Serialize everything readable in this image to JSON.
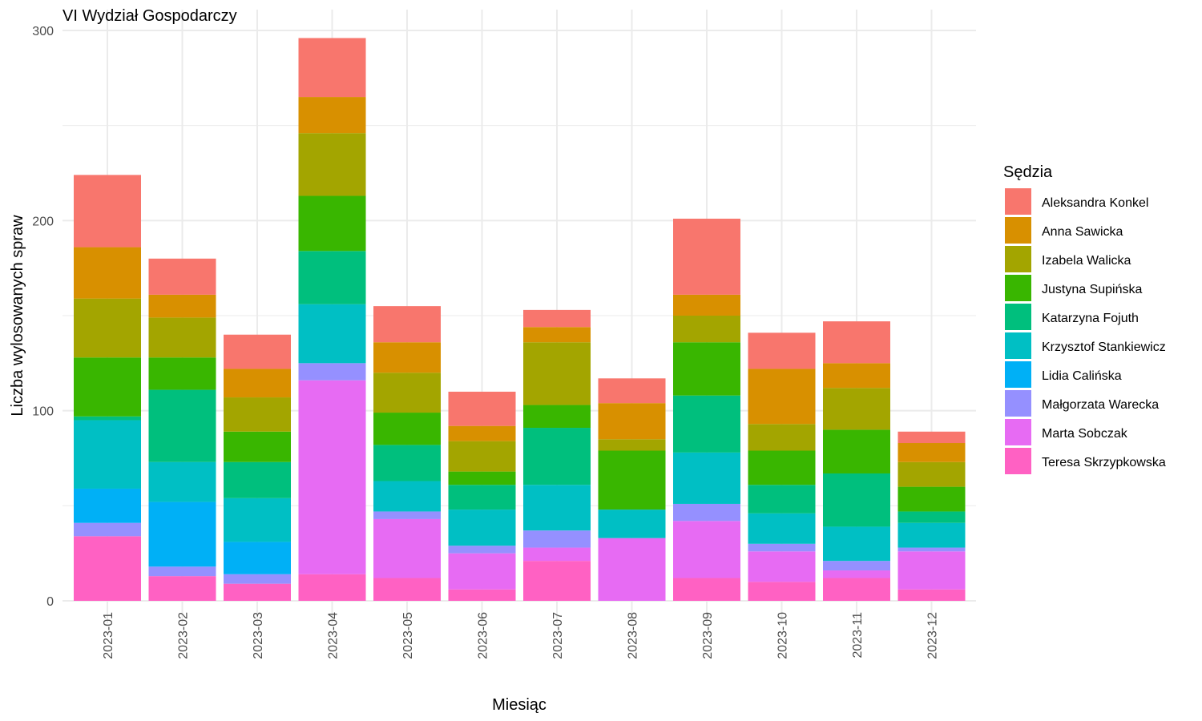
{
  "chart_data": {
    "type": "bar",
    "stacked": true,
    "title": "VI Wydział Gospodarczy",
    "xlabel": "Miesiąc",
    "ylabel": "Liczba wylosowanych spraw",
    "ylim": [
      0,
      300
    ],
    "y_ticks": [
      0,
      100,
      200,
      300
    ],
    "grid": true,
    "legend_position": "right",
    "legend_title": "Sędzia",
    "categories": [
      "2023-01",
      "2023-02",
      "2023-03",
      "2023-04",
      "2023-05",
      "2023-06",
      "2023-07",
      "2023-08",
      "2023-09",
      "2023-10",
      "2023-11",
      "2023-12"
    ],
    "series": [
      {
        "name": "Teresa Skrzypkowska",
        "color": "#FF61C3",
        "values": [
          34,
          13,
          9,
          14,
          12,
          6,
          21,
          0,
          12,
          10,
          12,
          6
        ]
      },
      {
        "name": "Marta Sobczak",
        "color": "#E76BF3",
        "values": [
          0,
          0,
          0,
          102,
          31,
          19,
          7,
          33,
          30,
          16,
          4,
          20
        ]
      },
      {
        "name": "Małgorzata Warecka",
        "color": "#9590FF",
        "values": [
          7,
          5,
          5,
          9,
          4,
          4,
          9,
          0,
          9,
          4,
          5,
          2
        ]
      },
      {
        "name": "Lidia Calińska",
        "color": "#00B0F6",
        "values": [
          18,
          34,
          17,
          0,
          0,
          0,
          0,
          0,
          0,
          0,
          0,
          0
        ]
      },
      {
        "name": "Krzysztof Stankiewicz",
        "color": "#00BFC4",
        "values": [
          36,
          21,
          23,
          31,
          16,
          19,
          24,
          15,
          27,
          16,
          18,
          13
        ]
      },
      {
        "name": "Katarzyna Fojuth",
        "color": "#00BF7D",
        "values": [
          2,
          38,
          19,
          28,
          19,
          13,
          30,
          0,
          30,
          15,
          28,
          6
        ]
      },
      {
        "name": "Justyna Supińska",
        "color": "#39B600",
        "values": [
          31,
          17,
          16,
          29,
          17,
          7,
          12,
          31,
          28,
          18,
          23,
          13
        ]
      },
      {
        "name": "Izabela Walicka",
        "color": "#A3A500",
        "values": [
          31,
          21,
          18,
          33,
          21,
          16,
          33,
          6,
          14,
          14,
          22,
          13
        ]
      },
      {
        "name": "Anna Sawicka",
        "color": "#D89000",
        "values": [
          27,
          12,
          15,
          19,
          16,
          8,
          8,
          19,
          11,
          29,
          13,
          10
        ]
      },
      {
        "name": "Aleksandra Konkel",
        "color": "#F8766D",
        "values": [
          38,
          19,
          18,
          31,
          19,
          18,
          9,
          13,
          40,
          19,
          22,
          6
        ]
      }
    ],
    "legend_order": [
      "Aleksandra Konkel",
      "Anna Sawicka",
      "Izabela Walicka",
      "Justyna Supińska",
      "Katarzyna Fojuth",
      "Krzysztof Stankiewicz",
      "Lidia Calińska",
      "Małgorzata Warecka",
      "Marta Sobczak",
      "Teresa Skrzypkowska"
    ]
  }
}
